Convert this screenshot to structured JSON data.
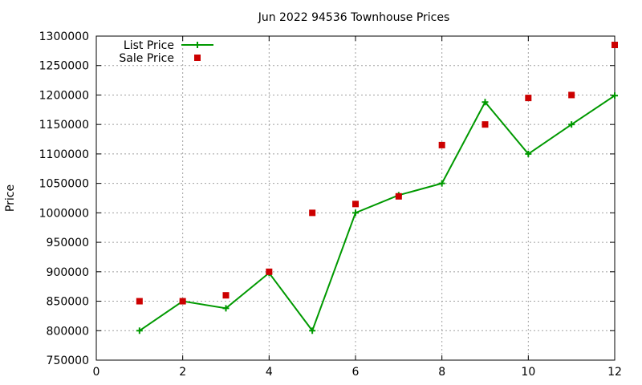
{
  "chart_data": {
    "type": "line",
    "title": "Jun 2022 94536 Townhouse Prices",
    "xlabel": "",
    "ylabel": "Price",
    "xlim": [
      0,
      12
    ],
    "ylim": [
      750000,
      1300000
    ],
    "x_ticks": [
      0,
      2,
      4,
      6,
      8,
      10,
      12
    ],
    "y_ticks": [
      750000,
      800000,
      850000,
      900000,
      950000,
      1000000,
      1050000,
      1100000,
      1150000,
      1200000,
      1250000,
      1300000
    ],
    "grid": true,
    "legend_position": "top-left",
    "series": [
      {
        "name": "List Price",
        "style": "linespoints",
        "color": "#009900",
        "x": [
          1,
          2,
          3,
          4,
          5,
          6,
          7,
          8,
          9,
          10,
          11,
          12
        ],
        "y": [
          800000,
          850000,
          838000,
          898000,
          800000,
          1000000,
          1030000,
          1050000,
          1188000,
          1100000,
          1150000,
          1199000
        ]
      },
      {
        "name": "Sale Price",
        "style": "points",
        "color": "#cc0000",
        "x": [
          1,
          2,
          3,
          4,
          5,
          6,
          7,
          8,
          9,
          10,
          11,
          12
        ],
        "y": [
          850000,
          850000,
          860000,
          900000,
          1000000,
          1015000,
          1028000,
          1115000,
          1150000,
          1195000,
          1200000,
          1285000
        ]
      }
    ]
  }
}
